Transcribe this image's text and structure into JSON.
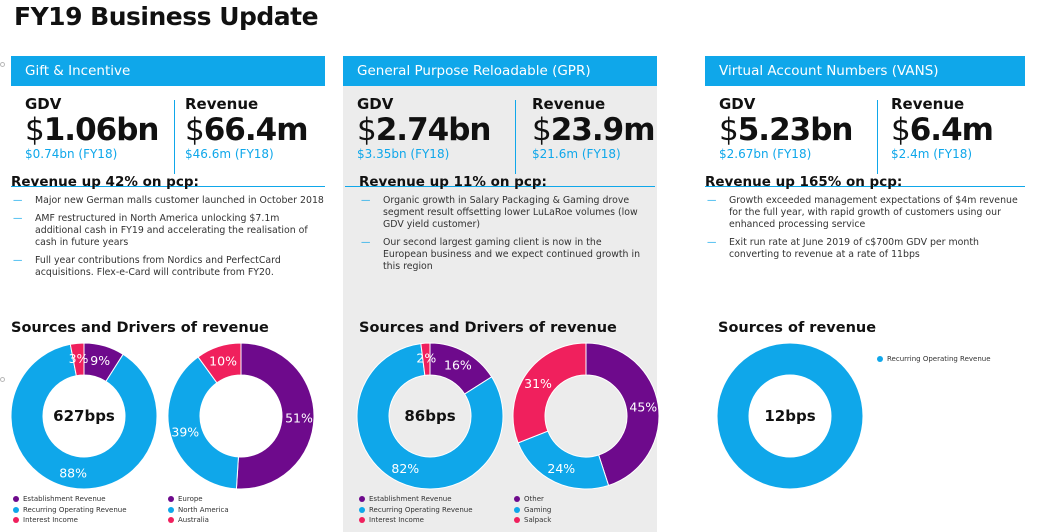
{
  "page": {
    "title": "FY19 Business Update"
  },
  "colors": {
    "blue": "#0fa7ea",
    "purple": "#6e0a8c",
    "pink": "#f0205d",
    "gray_bg": "#ececec"
  },
  "columns": [
    {
      "banner": "Gift & Incentive",
      "gdv": {
        "label": "GDV",
        "currency": "$",
        "value": "1.06bn",
        "prev": "$0.74bn (FY18)"
      },
      "revenue": {
        "label": "Revenue",
        "currency": "$",
        "value": "66.4m",
        "prev": "$46.6m (FY18)"
      },
      "rev_heading": "Revenue up 42% on pcp:",
      "bullets": [
        "Major new German malls customer launched in October 2018",
        "AMF restructured in North America unlocking $7.1m additional cash in FY19 and accelerating the realisation of cash in future years",
        "Full year contributions from Nordics and PerfectCard acquisitions. Flex-e-Card will contribute from FY20."
      ],
      "sources_heading": "Sources and Drivers of revenue",
      "legend_left": [
        "Establishment Revenue",
        "Recurring Operating Revenue",
        "Interest Income"
      ],
      "legend_right": [
        "Europe",
        "North America",
        "Australia"
      ]
    },
    {
      "banner": "General Purpose Reloadable (GPR)",
      "gdv": {
        "label": "GDV",
        "currency": "$",
        "value": "2.74bn",
        "prev": "$3.35bn (FY18)"
      },
      "revenue": {
        "label": "Revenue",
        "currency": "$",
        "value": "23.9m",
        "prev": "$21.6m (FY18)"
      },
      "rev_heading": "Revenue up 11% on pcp:",
      "bullets": [
        "Organic growth in Salary Packaging & Gaming drove segment result offsetting lower LuLaRoe volumes (low GDV yield customer)",
        "Our second largest gaming client is now in the European business and we expect continued growth in this region"
      ],
      "sources_heading": "Sources and Drivers of revenue",
      "legend_left": [
        "Establishment Revenue",
        "Recurring Operating Revenue",
        "Interest Income"
      ],
      "legend_right": [
        "Other",
        "Gaming",
        "Salpack"
      ]
    },
    {
      "banner": "Virtual Account Numbers (VANS)",
      "gdv": {
        "label": "GDV",
        "currency": "$",
        "value": "5.23bn",
        "prev": "$2.67bn (FY18)"
      },
      "revenue": {
        "label": "Revenue",
        "currency": "$",
        "value": "6.4m",
        "prev": "$2.4m (FY18)"
      },
      "rev_heading": "Revenue up 165% on pcp:",
      "bullets": [
        "Growth exceeded management expectations of $4m revenue for the full year, with rapid growth of customers using our enhanced processing service",
        "Exit run rate at June 2019 of c$700m GDV per month converting to revenue at a rate of 11bps"
      ],
      "sources_heading": "Sources of revenue",
      "legend_left": [
        "Recurring Operating Revenue"
      ]
    }
  ],
  "chart_data": [
    {
      "type": "pie",
      "center_label": "627bps",
      "categories": [
        "Establishment Revenue",
        "Recurring Operating Revenue",
        "Interest Income"
      ],
      "values": [
        9,
        88,
        3
      ],
      "labels": [
        "9%",
        "88%",
        "3%"
      ],
      "colors": [
        "#6e0a8c",
        "#0fa7ea",
        "#f0205d"
      ]
    },
    {
      "type": "pie",
      "center_label": "",
      "categories": [
        "Europe",
        "North America",
        "Australia"
      ],
      "values": [
        51,
        39,
        10
      ],
      "labels": [
        "51%",
        "39%",
        "10%"
      ],
      "colors": [
        "#6e0a8c",
        "#0fa7ea",
        "#f0205d"
      ]
    },
    {
      "type": "pie",
      "center_label": "86bps",
      "categories": [
        "Establishment Revenue",
        "Recurring Operating Revenue",
        "Interest Income"
      ],
      "values": [
        16,
        82,
        2
      ],
      "labels": [
        "16%",
        "82%",
        "2%"
      ],
      "colors": [
        "#6e0a8c",
        "#0fa7ea",
        "#f0205d"
      ]
    },
    {
      "type": "pie",
      "center_label": "",
      "categories": [
        "Other",
        "Gaming",
        "Salpack"
      ],
      "values": [
        45,
        24,
        31
      ],
      "labels": [
        "45%",
        "24%",
        "31%"
      ],
      "colors": [
        "#6e0a8c",
        "#0fa7ea",
        "#f0205d"
      ]
    },
    {
      "type": "pie",
      "center_label": "12bps",
      "categories": [
        "Recurring Operating Revenue"
      ],
      "values": [
        100
      ],
      "labels": [
        ""
      ],
      "colors": [
        "#0fa7ea"
      ]
    }
  ]
}
